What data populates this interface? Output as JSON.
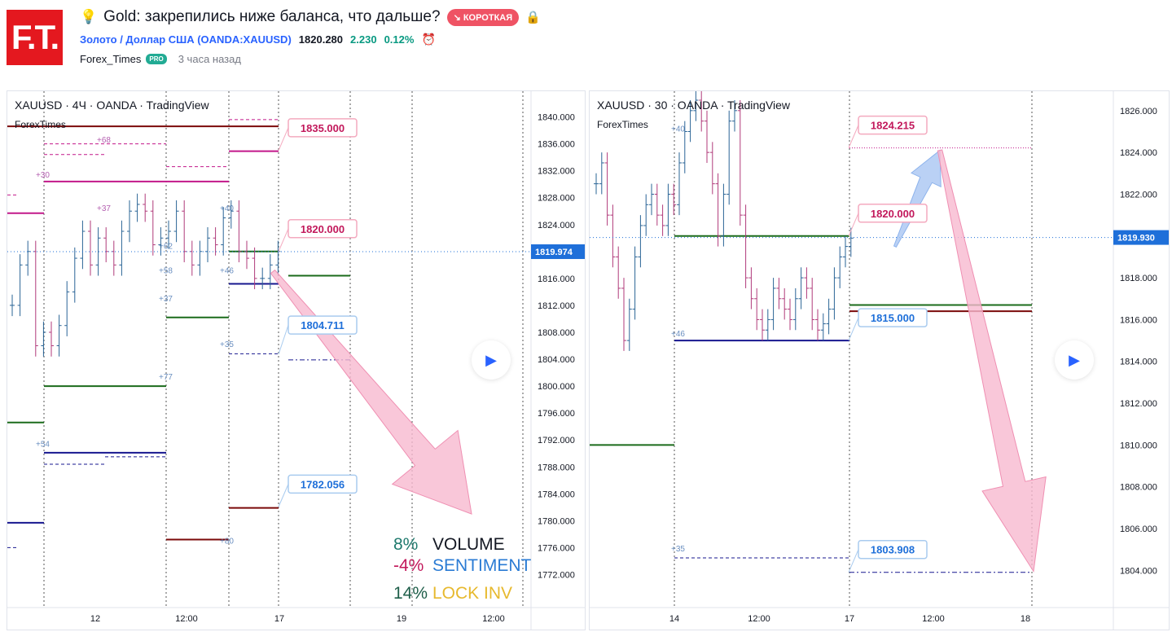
{
  "header": {
    "logo_text": "F.T.",
    "bulb_icon": "lightbulb-icon",
    "title": "Gold: закрепились ниже баланса, что дальше?",
    "direction_badge": "↘ КОРОТКАЯ",
    "lock_icon": "lock-icon",
    "symbol_link": "Золото / Доллар США (OANDA:XAUUSD)",
    "price": "1820.280",
    "change": "2.230",
    "change_pct": "0.12%",
    "alarm_icon": "alarm-clock-icon",
    "author": "Forex_Times",
    "pro_badge": "PRO",
    "posted_ago": "3 часа назад"
  },
  "colors": {
    "bull": "#2a6496",
    "bear": "#b03a7a",
    "magenta": "#c2188a",
    "green": "#1b6b1b",
    "navy": "#17178f",
    "darkred": "#7b0a0a",
    "pink_fill": "#f7b9cf",
    "blue_fill": "#a9c6f2",
    "axis_text": "#131722",
    "price_tag": "#1e6fd9"
  },
  "chart_left": {
    "legend": "XAUUSD · 4Ч · OANDA · TradingView",
    "sublegend": "ForexTimes",
    "price_ticks": [
      "1840.000",
      "1836.000",
      "1832.000",
      "1828.000",
      "1824.000",
      "1820.000",
      "1816.000",
      "1812.000",
      "1808.000",
      "1804.000",
      "1800.000",
      "1796.000",
      "1792.000",
      "1788.000",
      "1784.000",
      "1780.000",
      "1776.000",
      "1772.000"
    ],
    "time_ticks": [
      "12",
      "12:00",
      "17",
      "19",
      "12:00"
    ],
    "current_price": "1819.974",
    "callouts": [
      "1835.000",
      "1820.000",
      "1804.711",
      "1782.056"
    ],
    "level_labels": [
      "+68",
      "+30",
      "+37",
      "+62",
      "+58",
      "+37",
      "+77",
      "+54",
      "+40",
      "+46",
      "+35",
      "+80"
    ],
    "play_icon": "play-icon",
    "stats": [
      {
        "pct": "8%",
        "label": "VOLUME",
        "pct_color": "#1f7a6e",
        "label_color": "#131722"
      },
      {
        "pct": "-4%",
        "label": "SENTIMENT",
        "pct_color": "#c2185b",
        "label_color": "#2a7bd4"
      },
      {
        "pct": "14%",
        "label": "LOCK INV",
        "pct_color": "#1f5f4a",
        "label_color": "#e7b92e"
      }
    ]
  },
  "chart_right": {
    "legend": "XAUUSD · 30 · OANDA · TradingView",
    "sublegend": "ForexTimes",
    "price_ticks": [
      "1826.000",
      "1824.000",
      "1822.000",
      "1820.000",
      "1818.000",
      "1816.000",
      "1814.000",
      "1812.000",
      "1810.000",
      "1808.000",
      "1806.000",
      "1804.000"
    ],
    "time_ticks": [
      "14",
      "12:00",
      "17",
      "12:00",
      "18"
    ],
    "current_price": "1819.930",
    "callouts": [
      "1824.215",
      "1820.000",
      "1815.000",
      "1803.908"
    ],
    "level_labels": [
      "+40",
      "+46",
      "+35"
    ],
    "play_icon": "play-icon"
  },
  "chart_data": [
    {
      "type": "candlestick",
      "title": "XAUUSD · 4Ч · OANDA · TradingView",
      "ylim": [
        1770,
        1842
      ],
      "x_ticks": [
        "12",
        "12:00",
        "17",
        "19",
        "12:00"
      ],
      "current_price": 1819.974,
      "close_prices": [
        1812,
        1818,
        1820,
        1806,
        1808,
        1806,
        1809,
        1814,
        1819,
        1823,
        1818,
        1822,
        1820,
        1818,
        1823,
        1826,
        1827,
        1826,
        1821,
        1822,
        1823,
        1826,
        1820,
        1818,
        1820,
        1822,
        1821,
        1825,
        1826,
        1820,
        1819,
        1816,
        1816,
        1818,
        1820
      ],
      "levels": [
        1835.0,
        1820.0,
        1804.711,
        1782.056
      ],
      "projection": {
        "from": 1817.0,
        "to": 1781.0
      }
    },
    {
      "type": "candlestick",
      "title": "XAUUSD · 30 · OANDA · TradingView",
      "ylim": [
        1803,
        1826.5
      ],
      "x_ticks": [
        "14",
        "12:00",
        "17",
        "12:00",
        "18"
      ],
      "current_price": 1819.93,
      "close_prices": [
        1822.5,
        1823.5,
        1821.0,
        1819.0,
        1817.5,
        1815.0,
        1816.5,
        1819.0,
        1820.5,
        1821.5,
        1822.0,
        1821.0,
        1820.5,
        1822.0,
        1821.5,
        1823.5,
        1825.0,
        1826.0,
        1826.5,
        1825.5,
        1824.0,
        1822.5,
        1820.0,
        1822.0,
        1825.5,
        1826.0,
        1821.0,
        1818.0,
        1817.0,
        1816.0,
        1815.5,
        1816.0,
        1817.5,
        1817.0,
        1816.5,
        1816.0,
        1817.0,
        1818.0,
        1817.5,
        1816.0,
        1815.5,
        1815.8,
        1816.5,
        1818.0,
        1819.0,
        1819.5,
        1819.9
      ],
      "levels": [
        1824.215,
        1820.0,
        1815.0,
        1803.908
      ],
      "projection": {
        "from": 1824.215,
        "to": 1804.0
      }
    }
  ]
}
